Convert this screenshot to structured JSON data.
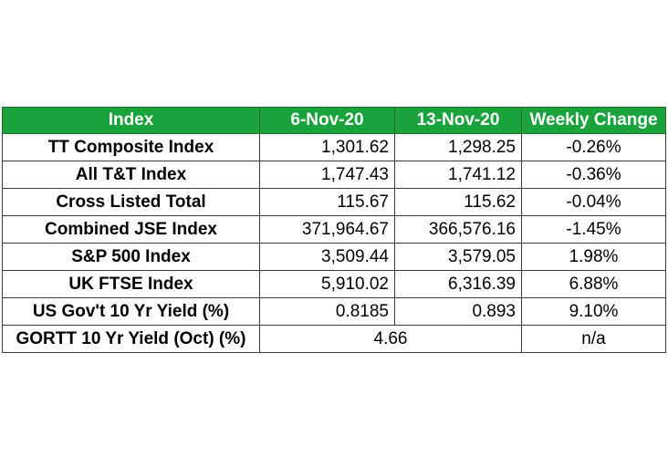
{
  "table": {
    "headers": [
      "Index",
      "6-Nov-20",
      "13-Nov-20",
      "Weekly Change"
    ],
    "rows": [
      {
        "label": "TT Composite Index",
        "nov6": "1,301.62",
        "nov13": "1,298.25",
        "change": "-0.26%"
      },
      {
        "label": "All T&T Index",
        "nov6": "1,747.43",
        "nov13": "1,741.12",
        "change": "-0.36%"
      },
      {
        "label": "Cross Listed Total",
        "nov6": "115.67",
        "nov13": "115.62",
        "change": "-0.04%"
      },
      {
        "label": "Combined JSE Index",
        "nov6": "371,964.67",
        "nov13": "366,576.16",
        "change": "-1.45%"
      },
      {
        "label": "S&P 500 Index",
        "nov6": "3,509.44",
        "nov13": "3,579.05",
        "change": "1.98%"
      },
      {
        "label": "UK FTSE Index",
        "nov6": "5,910.02",
        "nov13": "6,316.39",
        "change": "6.88%"
      },
      {
        "label": "US Gov't 10 Yr Yield (%)",
        "nov6": "0.8185",
        "nov13": "0.893",
        "change": "9.10%"
      }
    ],
    "last_row": {
      "label": "GORTT 10 Yr Yield (Oct) (%)",
      "value": "4.66",
      "change": "n/a"
    }
  },
  "colors": {
    "header_bg": "#1aa23c",
    "header_text": "#ffffff",
    "border": "#3a3a3a"
  }
}
